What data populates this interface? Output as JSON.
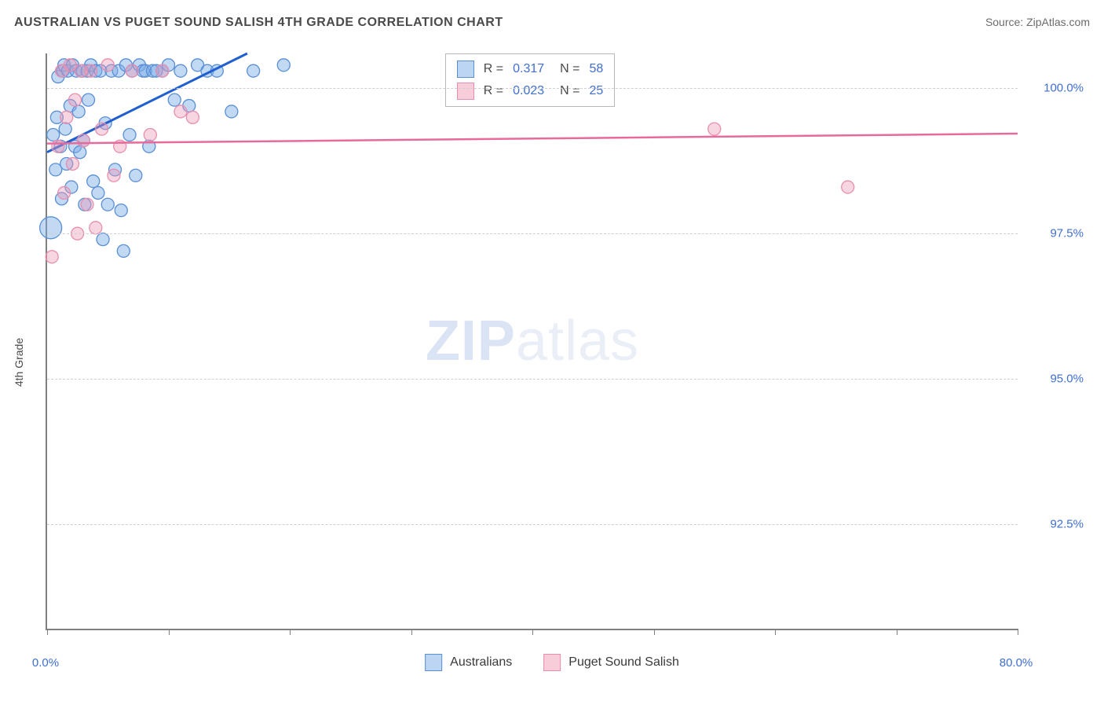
{
  "header": {
    "title": "AUSTRALIAN VS PUGET SOUND SALISH 4TH GRADE CORRELATION CHART",
    "source": "Source: ZipAtlas.com"
  },
  "chart": {
    "type": "scatter",
    "yaxis_label": "4th Grade",
    "background_color": "#ffffff",
    "grid_color": "#cfcfcf",
    "axis_color": "#808080",
    "xlim": [
      0,
      80
    ],
    "ylim": [
      90.7,
      100.6
    ],
    "xtick_positions": [
      0,
      10,
      20,
      30,
      40,
      50,
      60,
      70,
      80
    ],
    "xtick_labels": {
      "0": "0.0%",
      "80": "80.0%"
    },
    "ytick_values": [
      92.5,
      95.0,
      97.5,
      100.0
    ],
    "ytick_labels": [
      "92.5%",
      "95.0%",
      "97.5%",
      "100.0%"
    ],
    "watermark_zip": "ZIP",
    "watermark_atlas": "atlas",
    "top_legend": {
      "rows": [
        {
          "swatch_fill": "#bcd5f2",
          "swatch_border": "#5a8fd6",
          "r_label": "R =",
          "r_val": "0.317",
          "n_label": "N =",
          "n_val": "58"
        },
        {
          "swatch_fill": "#f7cdd9",
          "swatch_border": "#e78fb0",
          "r_label": "R =",
          "r_val": "0.023",
          "n_label": "N =",
          "n_val": "25"
        }
      ],
      "left_pct": 41,
      "top_pct": 0
    },
    "bottom_legend": [
      {
        "swatch_fill": "#bcd5f2",
        "swatch_border": "#5a8fd6",
        "label": "Australians"
      },
      {
        "swatch_fill": "#f7cdd9",
        "swatch_border": "#e78fb0",
        "label": "Puget Sound Salish"
      }
    ],
    "series": [
      {
        "name": "Australians",
        "marker_fill": "rgba(120,170,230,0.45)",
        "marker_stroke": "#5a8fd6",
        "marker_r": 8,
        "trend_color": "#1f5fd0",
        "trend_width": 3,
        "trend": {
          "x1": 0,
          "y1": 98.9,
          "x2": 16.5,
          "y2": 100.6
        },
        "points": [
          [
            0.3,
            97.6,
            14
          ],
          [
            0.5,
            99.2
          ],
          [
            0.7,
            98.6
          ],
          [
            0.8,
            99.5
          ],
          [
            0.9,
            100.2
          ],
          [
            1.1,
            99.0
          ],
          [
            1.2,
            98.1
          ],
          [
            1.3,
            100.3
          ],
          [
            1.4,
            100.4
          ],
          [
            1.5,
            99.3
          ],
          [
            1.6,
            98.7
          ],
          [
            1.7,
            100.3
          ],
          [
            1.9,
            99.7
          ],
          [
            2.0,
            98.3
          ],
          [
            2.1,
            100.4
          ],
          [
            2.3,
            99.0
          ],
          [
            2.4,
            100.3
          ],
          [
            2.6,
            99.6
          ],
          [
            2.7,
            98.9
          ],
          [
            2.9,
            100.3
          ],
          [
            3.0,
            99.1
          ],
          [
            3.1,
            98.0
          ],
          [
            3.3,
            100.3
          ],
          [
            3.4,
            99.8
          ],
          [
            3.6,
            100.4
          ],
          [
            3.8,
            98.4
          ],
          [
            4.0,
            100.3
          ],
          [
            4.2,
            98.2
          ],
          [
            4.4,
            100.3
          ],
          [
            4.6,
            97.4
          ],
          [
            4.8,
            99.4
          ],
          [
            5.0,
            98.0
          ],
          [
            5.3,
            100.3
          ],
          [
            5.6,
            98.6
          ],
          [
            5.9,
            100.3
          ],
          [
            6.1,
            97.9
          ],
          [
            6.3,
            97.2
          ],
          [
            6.5,
            100.4
          ],
          [
            6.8,
            99.2
          ],
          [
            7.0,
            100.3
          ],
          [
            7.3,
            98.5
          ],
          [
            7.6,
            100.4
          ],
          [
            7.9,
            100.3
          ],
          [
            8.1,
            100.3
          ],
          [
            8.4,
            99.0
          ],
          [
            8.7,
            100.3
          ],
          [
            9.0,
            100.3
          ],
          [
            9.5,
            100.3
          ],
          [
            10.0,
            100.4
          ],
          [
            10.5,
            99.8
          ],
          [
            11.0,
            100.3
          ],
          [
            11.7,
            99.7
          ],
          [
            12.4,
            100.4
          ],
          [
            13.2,
            100.3
          ],
          [
            14.0,
            100.3
          ],
          [
            15.2,
            99.6
          ],
          [
            17.0,
            100.3
          ],
          [
            19.5,
            100.4
          ]
        ]
      },
      {
        "name": "Puget Sound Salish",
        "marker_fill": "rgba(235,150,180,0.40)",
        "marker_stroke": "#e78fb0",
        "marker_r": 8,
        "trend_color": "#e86a9a",
        "trend_width": 2.5,
        "trend": {
          "x1": 0,
          "y1": 99.05,
          "x2": 80,
          "y2": 99.22
        },
        "points": [
          [
            0.4,
            97.1
          ],
          [
            0.9,
            99.0
          ],
          [
            1.2,
            100.3
          ],
          [
            1.4,
            98.2
          ],
          [
            1.6,
            99.5
          ],
          [
            1.9,
            100.4
          ],
          [
            2.1,
            98.7
          ],
          [
            2.3,
            99.8
          ],
          [
            2.5,
            97.5
          ],
          [
            2.8,
            100.3
          ],
          [
            3.0,
            99.1
          ],
          [
            3.3,
            98.0
          ],
          [
            3.6,
            100.3
          ],
          [
            4.0,
            97.6
          ],
          [
            4.5,
            99.3
          ],
          [
            5.0,
            100.4
          ],
          [
            5.5,
            98.5
          ],
          [
            6.0,
            99.0
          ],
          [
            7.0,
            100.3
          ],
          [
            8.5,
            99.2
          ],
          [
            9.5,
            100.3
          ],
          [
            11.0,
            99.6
          ],
          [
            12.0,
            99.5
          ],
          [
            55.0,
            99.3
          ],
          [
            66.0,
            98.3
          ]
        ]
      }
    ]
  }
}
